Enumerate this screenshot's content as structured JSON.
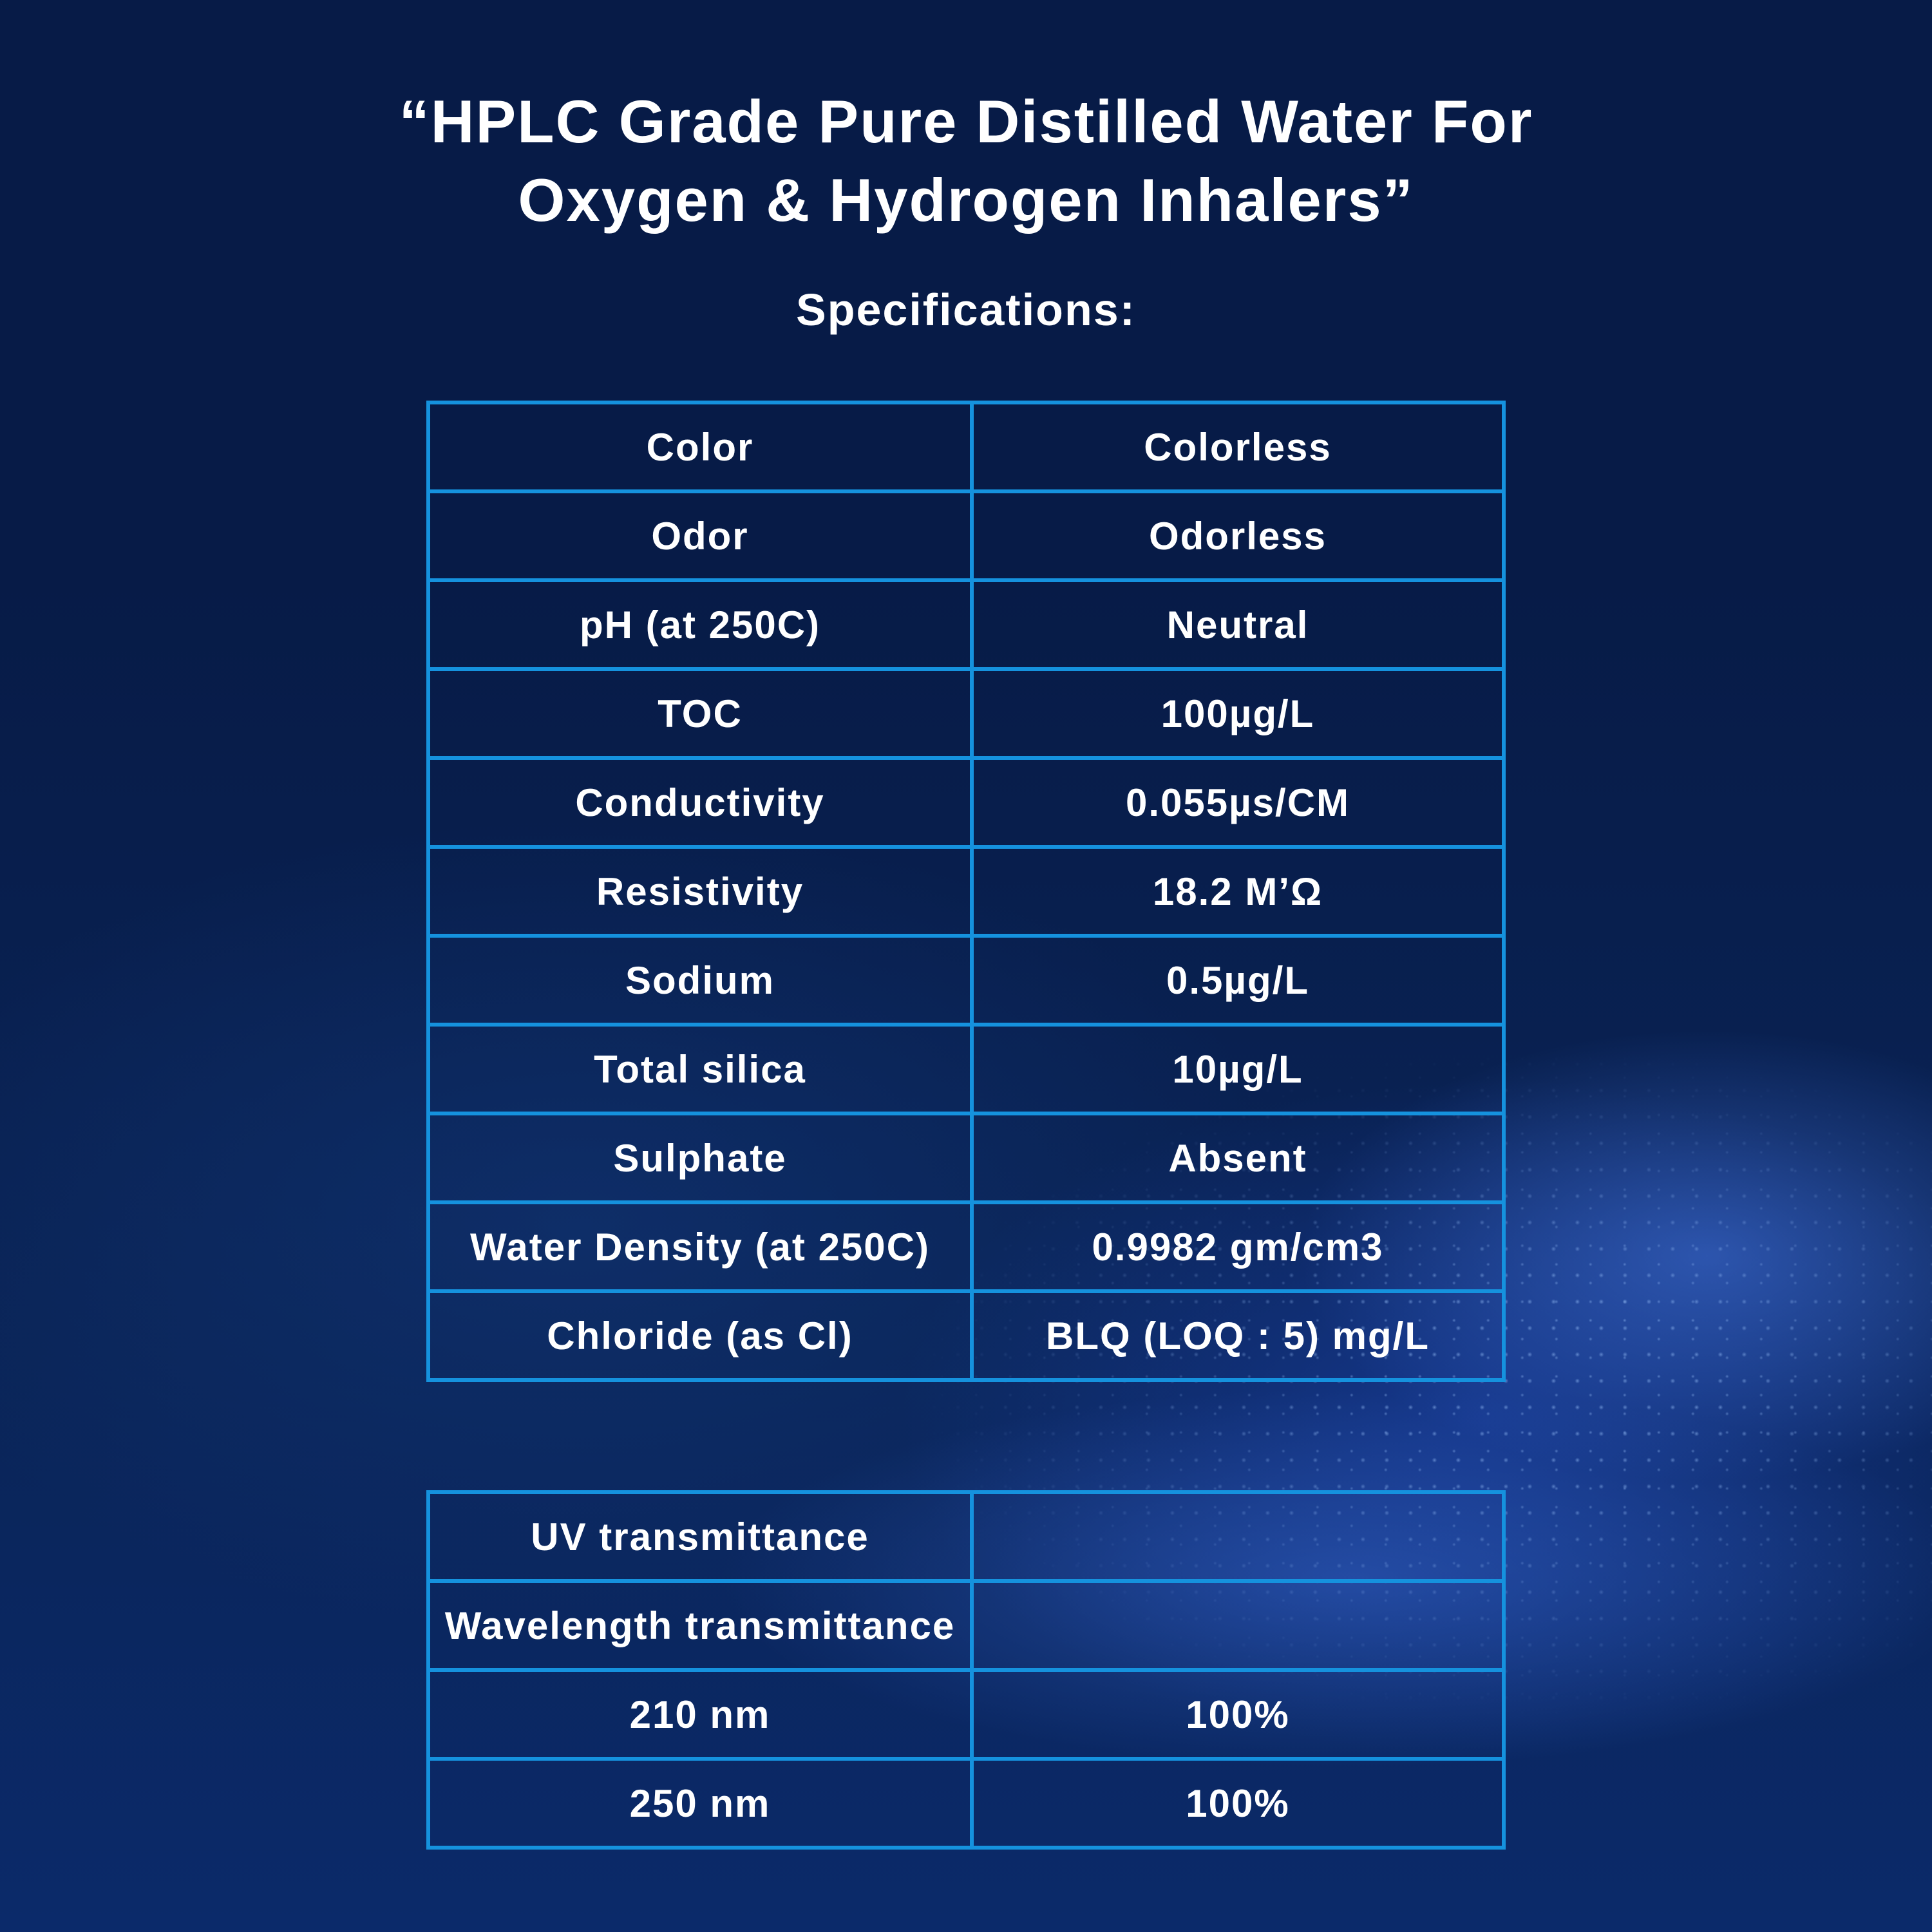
{
  "header": {
    "title_line1": "“HPLC Grade Pure Distilled Water For",
    "title_line2": "Oxygen & Hydrogen Inhalers”",
    "subtitle": "Specifications:"
  },
  "colors": {
    "background": "#071b47",
    "border": "#1592de",
    "text": "#ffffff"
  },
  "spec_table": {
    "rows": [
      {
        "label": "Color",
        "value": "Colorless"
      },
      {
        "label": "Odor",
        "value": "Odorless"
      },
      {
        "label": "pH (at 250C)",
        "value": "Neutral"
      },
      {
        "label": "TOC",
        "value": "100µg/L"
      },
      {
        "label": "Conductivity",
        "value": "0.055µs/CM"
      },
      {
        "label": "Resistivity",
        "value": "18.2 M’Ω"
      },
      {
        "label": "Sodium",
        "value": "0.5µg/L"
      },
      {
        "label": "Total silica",
        "value": "10µg/L"
      },
      {
        "label": "Sulphate",
        "value": "Absent"
      },
      {
        "label": "Water Density (at 250C)",
        "value": "0.9982 gm/cm3"
      },
      {
        "label": "Chloride (as Cl)",
        "value": "BLQ (LOQ : 5) mg/L"
      }
    ]
  },
  "uv_table": {
    "rows": [
      {
        "label": "UV transmittance",
        "value": ""
      },
      {
        "label": "Wavelength transmittance",
        "value": ""
      },
      {
        "label": "210 nm",
        "value": "100%"
      },
      {
        "label": "250 nm",
        "value": "100%"
      }
    ]
  }
}
